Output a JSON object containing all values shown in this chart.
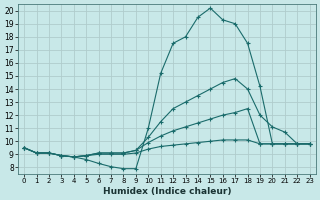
{
  "xlabel": "Humidex (Indice chaleur)",
  "background_color": "#c8e8e8",
  "grid_color": "#b0cccc",
  "line_color": "#1a6b6b",
  "xlim": [
    -0.5,
    23.5
  ],
  "ylim": [
    7.5,
    20.5
  ],
  "xticks": [
    0,
    1,
    2,
    3,
    4,
    5,
    6,
    7,
    8,
    9,
    10,
    11,
    12,
    13,
    14,
    15,
    16,
    17,
    18,
    19,
    20,
    21,
    22,
    23
  ],
  "yticks": [
    8,
    9,
    10,
    11,
    12,
    13,
    14,
    15,
    16,
    17,
    18,
    19,
    20
  ],
  "lines": [
    {
      "x": [
        0,
        1,
        2,
        3,
        4,
        5,
        6,
        7,
        8,
        9,
        10,
        11,
        12,
        13,
        14,
        15,
        16,
        17,
        18,
        19,
        20,
        21,
        22,
        23
      ],
      "y": [
        9.5,
        9.1,
        9.1,
        8.9,
        8.8,
        8.6,
        8.3,
        8.05,
        7.9,
        7.9,
        11.0,
        15.2,
        17.5,
        18.0,
        19.5,
        20.2,
        19.3,
        19.0,
        17.5,
        14.2,
        9.8,
        9.8,
        9.8,
        9.8
      ]
    },
    {
      "x": [
        0,
        1,
        2,
        3,
        4,
        5,
        6,
        7,
        8,
        9,
        10,
        11,
        12,
        13,
        14,
        15,
        16,
        17,
        18,
        19,
        20,
        21,
        22,
        23
      ],
      "y": [
        9.5,
        9.1,
        9.1,
        8.9,
        8.8,
        8.9,
        9.1,
        9.1,
        9.1,
        9.3,
        10.3,
        11.5,
        12.5,
        13.0,
        13.5,
        14.0,
        14.5,
        14.8,
        14.0,
        12.0,
        11.1,
        10.7,
        9.8,
        9.8
      ]
    },
    {
      "x": [
        0,
        1,
        2,
        3,
        4,
        5,
        6,
        7,
        8,
        9,
        10,
        11,
        12,
        13,
        14,
        15,
        16,
        17,
        18,
        19,
        20,
        21,
        22,
        23
      ],
      "y": [
        9.5,
        9.1,
        9.1,
        8.9,
        8.8,
        8.9,
        9.1,
        9.1,
        9.1,
        9.3,
        9.9,
        10.4,
        10.8,
        11.1,
        11.4,
        11.7,
        12.0,
        12.2,
        12.5,
        9.8,
        9.8,
        9.8,
        9.8,
        9.8
      ]
    },
    {
      "x": [
        0,
        1,
        2,
        3,
        4,
        5,
        6,
        7,
        8,
        9,
        10,
        11,
        12,
        13,
        14,
        15,
        16,
        17,
        18,
        19,
        20,
        21,
        22,
        23
      ],
      "y": [
        9.5,
        9.1,
        9.1,
        8.9,
        8.8,
        8.9,
        9.0,
        9.0,
        9.0,
        9.1,
        9.4,
        9.6,
        9.7,
        9.8,
        9.9,
        10.0,
        10.1,
        10.1,
        10.1,
        9.8,
        9.8,
        9.8,
        9.8,
        9.8
      ]
    }
  ]
}
